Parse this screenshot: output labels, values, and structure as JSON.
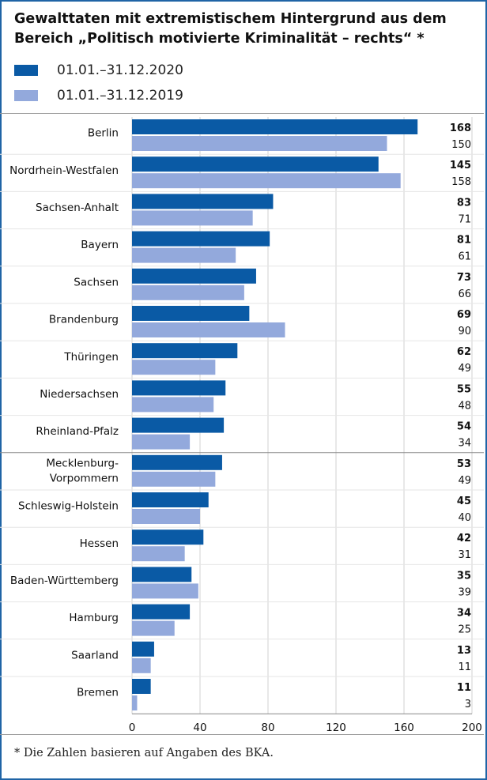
{
  "title": "Gewalttaten mit extremistischem Hintergrund aus dem Bereich „Politisch motivierte Kriminalität – rechts“ *",
  "legend": [
    {
      "label": "01.01.–31.12.2020",
      "color": "#0a5aa5"
    },
    {
      "label": "01.01.–31.12.2019",
      "color": "#93a9dc"
    }
  ],
  "footnote": "* Die Zahlen basieren auf Angaben des BKA.",
  "chart_data": {
    "type": "bar",
    "orientation": "horizontal",
    "categories": [
      "Berlin",
      "Nordrhein-Westfalen",
      "Sachsen-Anhalt",
      "Bayern",
      "Sachsen",
      "Brandenburg",
      "Thüringen",
      "Niedersachsen",
      "Rheinland-Pfalz",
      "Mecklenburg-\nVorpommern",
      "Schleswig-Holstein",
      "Hessen",
      "Baden-Württemberg",
      "Hamburg",
      "Saarland",
      "Bremen"
    ],
    "series": [
      {
        "name": "01.01.–31.12.2020",
        "values": [
          168,
          145,
          83,
          81,
          73,
          69,
          62,
          55,
          54,
          53,
          45,
          42,
          35,
          34,
          13,
          11
        ],
        "color": "#0a5aa5"
      },
      {
        "name": "01.01.–31.12.2019",
        "values": [
          150,
          158,
          71,
          61,
          66,
          90,
          49,
          48,
          34,
          49,
          40,
          31,
          39,
          25,
          11,
          3
        ],
        "color": "#93a9dc"
      }
    ],
    "x_ticks": [
      0,
      40,
      80,
      120,
      160,
      200
    ],
    "xlim": [
      0,
      200
    ],
    "grid": true
  }
}
